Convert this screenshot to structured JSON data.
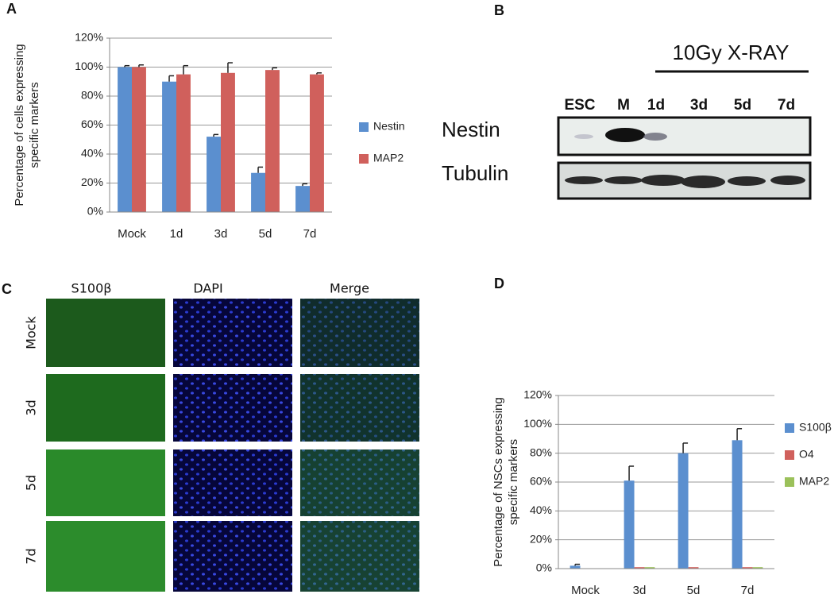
{
  "chart_data": [
    {
      "type": "bar",
      "letter": "A",
      "ylabel": [
        "Percentage of cells expressing",
        "specific markers"
      ],
      "categories": [
        "Mock",
        "1d",
        "3d",
        "5d",
        "7d"
      ],
      "series": [
        {
          "name": "Nestin",
          "color": "#5b8fcf",
          "values": [
            100,
            90,
            52,
            27,
            18
          ],
          "errors": [
            1,
            4,
            1.5,
            4,
            1.5
          ]
        },
        {
          "name": "MAP2",
          "color": "#d0605c",
          "values": [
            100,
            95,
            96,
            98,
            95
          ],
          "errors": [
            1.5,
            6,
            7,
            1.5,
            1
          ]
        }
      ],
      "ylim": [
        0,
        120
      ],
      "yticks": [
        {
          "value": 0,
          "label": "0%"
        },
        {
          "value": 20,
          "label": "20%"
        },
        {
          "value": 40,
          "label": "40%"
        },
        {
          "value": 60,
          "label": "60%"
        },
        {
          "value": 80,
          "label": "80%"
        },
        {
          "value": 100,
          "label": "100%"
        },
        {
          "value": 120,
          "label": "120%"
        }
      ],
      "grid": true,
      "legend": "right"
    },
    {
      "type": "bar",
      "letter": "D",
      "ylabel": [
        "Percentage of NSCs expressing",
        "specific markers"
      ],
      "categories": [
        "Mock",
        "3d",
        "5d",
        "7d"
      ],
      "series": [
        {
          "name": "S100β",
          "color": "#5b8fcf",
          "values": [
            2,
            61,
            80,
            89
          ],
          "errors": [
            1,
            10,
            7,
            8
          ]
        },
        {
          "name": "O4",
          "color": "#d0605c",
          "values": [
            0,
            1,
            1,
            1
          ]
        },
        {
          "name": "MAP2",
          "color": "#9bc15a",
          "values": [
            0,
            1,
            0,
            1
          ]
        }
      ],
      "ylim": [
        0,
        120
      ],
      "yticks": [
        {
          "value": 0,
          "label": "0%"
        },
        {
          "value": 20,
          "label": "20%"
        },
        {
          "value": 40,
          "label": "40%"
        },
        {
          "value": 60,
          "label": "60%"
        },
        {
          "value": 80,
          "label": "80%"
        },
        {
          "value": 100,
          "label": "100%"
        },
        {
          "value": 120,
          "label": "120%"
        }
      ],
      "grid": true,
      "legend": "right"
    }
  ],
  "blot": {
    "letter": "B",
    "treatment": "10Gy X-RAY",
    "lanes": [
      "ESC",
      "M",
      "1d",
      "3d",
      "5d",
      "7d"
    ],
    "rows": [
      "Nestin",
      "Tubulin"
    ]
  },
  "micrographs": {
    "letter": "C",
    "columns": [
      "S100β",
      "DAPI",
      "Merge"
    ],
    "rows": [
      "Mock",
      "3d",
      "5d",
      "7d"
    ]
  }
}
